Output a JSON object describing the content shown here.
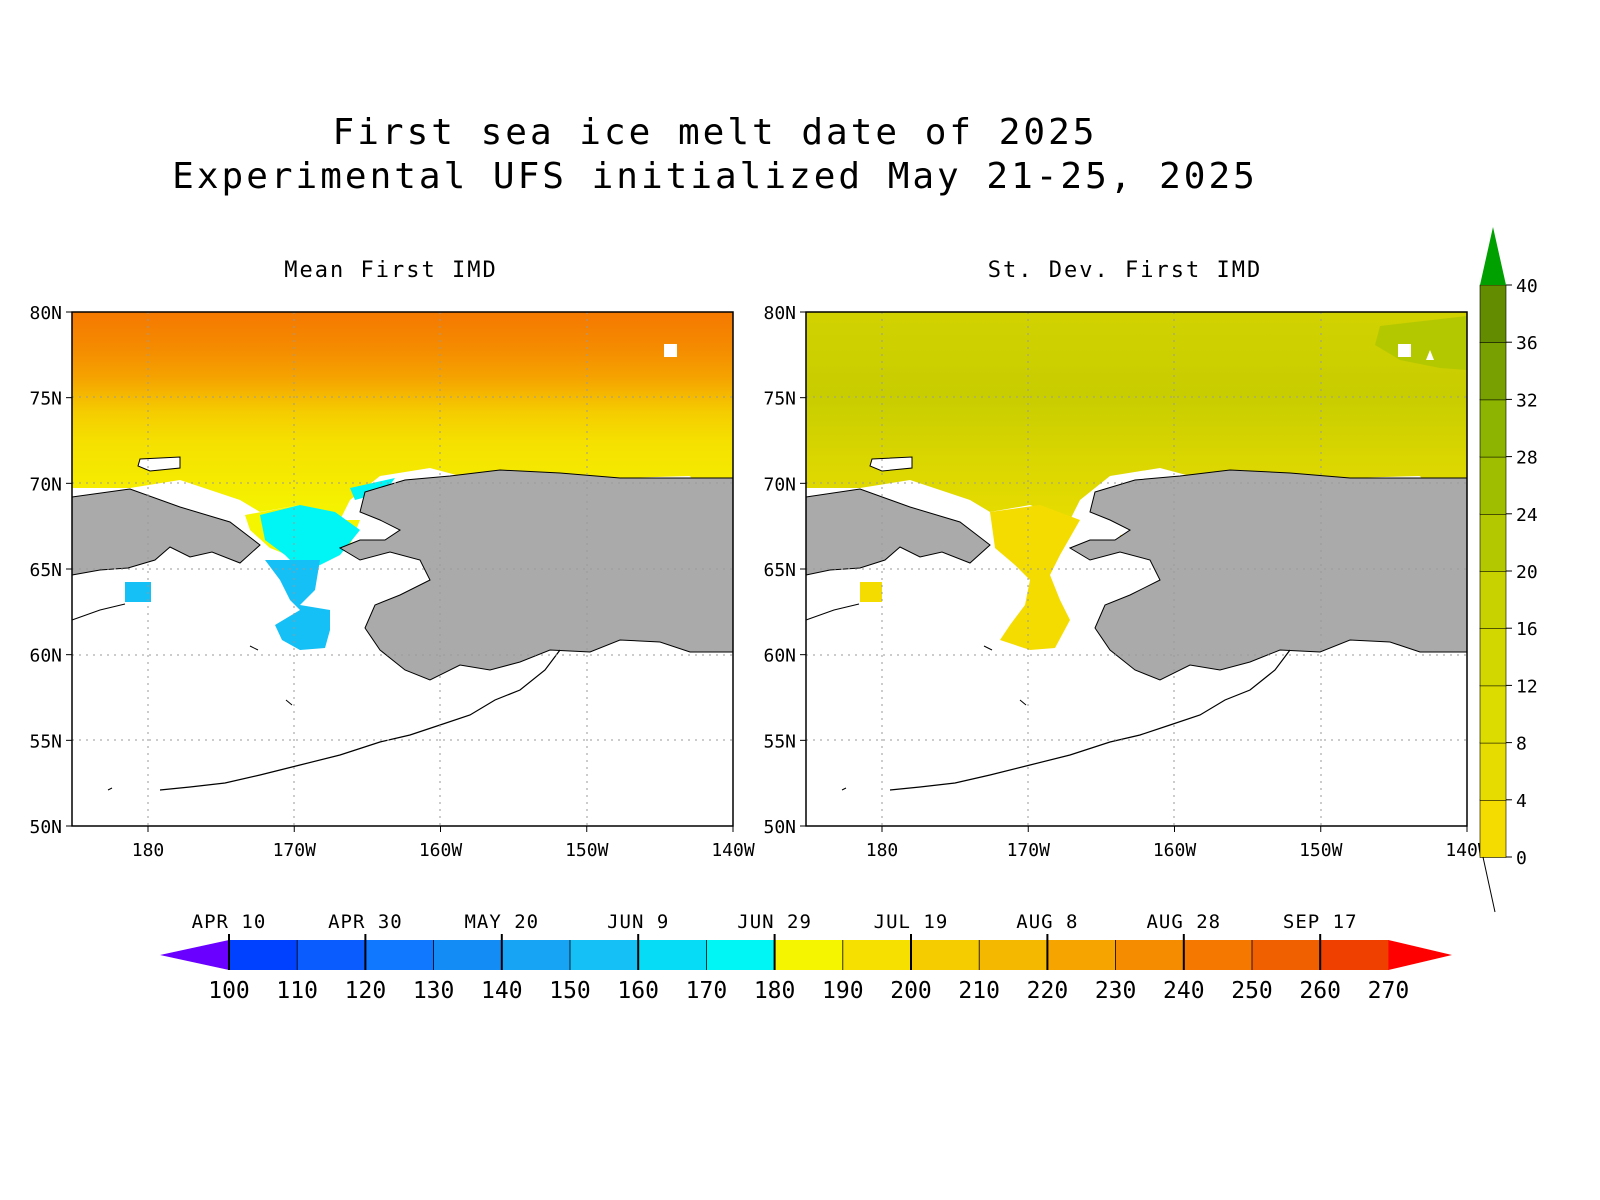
{
  "title": {
    "line1": "First sea ice melt date of 2025",
    "line2": "Experimental UFS initialized May 21-25, 2025"
  },
  "panels": [
    {
      "title": "Mean First IMD"
    },
    {
      "title": "St. Dev. First IMD"
    }
  ],
  "map_axes": {
    "lat_ticks": [
      "80N",
      "75N",
      "70N",
      "65N",
      "60N",
      "55N",
      "50N"
    ],
    "lon_ticks": [
      "180",
      "170W",
      "160W",
      "150W",
      "140W"
    ]
  },
  "colors": {
    "land": "#aaaaaa",
    "mean_colormap": [
      "#6a00ff",
      "#0040ff",
      "#0a5cff",
      "#0f78ff",
      "#148cf5",
      "#18a4f5",
      "#14c0f5",
      "#06dcf5",
      "#00f5f5",
      "#f5f500",
      "#f5e000",
      "#f5cc00",
      "#f5b800",
      "#f5a400",
      "#f58c00",
      "#f57800",
      "#f06000",
      "#f04000",
      "#ff0000"
    ],
    "stdev_colormap": [
      "#f5dc00",
      "#e6dc00",
      "#dcdc00",
      "#d2d700",
      "#c8d200",
      "#b4c800",
      "#a0be00",
      "#8cb400",
      "#78a000",
      "#648c00",
      "#00a000"
    ]
  },
  "mean_colorbar": {
    "date_labels": [
      "APR 10",
      "APR 30",
      "MAY 20",
      "JUN 9",
      "JUN 29",
      "JUL 19",
      "AUG 8",
      "AUG 28",
      "SEP 17"
    ],
    "value_labels": [
      "100",
      "110",
      "120",
      "130",
      "140",
      "150",
      "160",
      "170",
      "180",
      "190",
      "200",
      "210",
      "220",
      "230",
      "240",
      "250",
      "260",
      "270"
    ]
  },
  "stdev_colorbar": {
    "value_labels": [
      "0",
      "4",
      "8",
      "12",
      "16",
      "20",
      "24",
      "28",
      "32",
      "36",
      "40"
    ]
  }
}
